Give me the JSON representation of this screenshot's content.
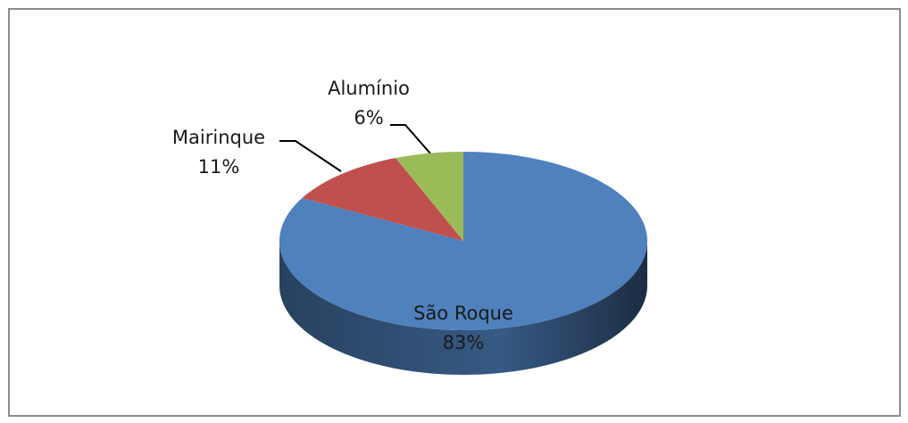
{
  "chart_data": {
    "type": "pie",
    "style": "3d",
    "categories": [
      "São Roque",
      "Mairinque",
      "Alumínio"
    ],
    "values": [
      83,
      11,
      6
    ],
    "value_labels": [
      "83%",
      "11%",
      "6%"
    ],
    "colors": [
      "#4f81bd",
      "#c0504d",
      "#9bbb59"
    ]
  }
}
